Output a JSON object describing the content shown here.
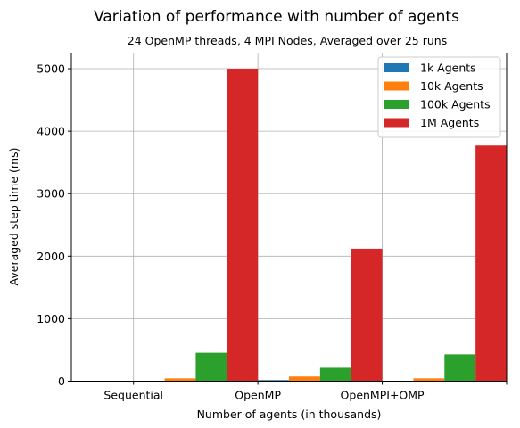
{
  "chart_data": {
    "type": "bar",
    "title": "Variation of performance with number of agents",
    "subtitle": "24 OpenMP threads, 4 MPI Nodes, Averaged over 25 runs",
    "xlabel": "Number of agents (in thousands)",
    "ylabel": "Averaged step time (ms)",
    "categories": [
      "Sequential",
      "OpenMP",
      "OpenMPI+OMP"
    ],
    "ylim": [
      0,
      5250
    ],
    "yticks": [
      0,
      1000,
      2000,
      3000,
      4000,
      5000
    ],
    "grid": true,
    "legend_position": "top-right",
    "series": [
      {
        "name": "1k Agents",
        "color": "#1f77b4",
        "values": [
          3,
          18,
          3
        ]
      },
      {
        "name": "10k Agents",
        "color": "#ff7f0e",
        "values": [
          45,
          75,
          45
        ]
      },
      {
        "name": "100k Agents",
        "color": "#2ca02c",
        "values": [
          455,
          215,
          430
        ]
      },
      {
        "name": "1M Agents",
        "color": "#d62728",
        "values": [
          5000,
          2120,
          3770
        ]
      }
    ]
  }
}
